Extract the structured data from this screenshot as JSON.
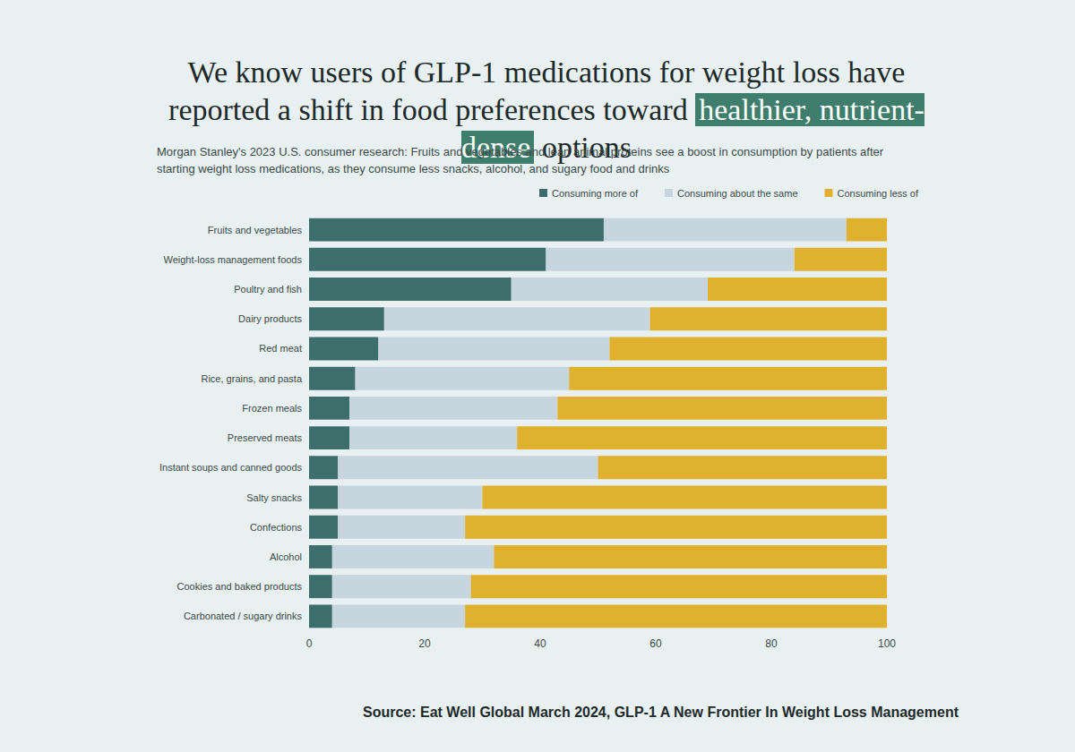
{
  "chart_data": {
    "type": "bar",
    "title": "We know users of GLP-1 medications for weight loss have reported a shift in food preferences toward healthier, nutrient-dense options",
    "title_highlight": "healthier, nutrient-dense",
    "subtitle": "Morgan Stanley's 2023 U.S. consumer research: Fruits and vegetables and lean animal proteins see a boost in consumption by patients after starting weight loss medications, as they consume less snacks, alcohol, and sugary food and drinks",
    "source": "Source: Eat Well Global March 2024, GLP-1 A New Frontier In Weight Loss Management",
    "orientation": "horizontal",
    "stacked": true,
    "legend": "top",
    "grid": false,
    "categories": [
      "Fruits and vegetables",
      "Weight-loss management foods",
      "Poultry and fish",
      "Dairy products",
      "Red meat",
      "Rice, grains, and pasta",
      "Frozen meals",
      "Preserved meats",
      "Instant soups and canned goods",
      "Salty snacks",
      "Confections",
      "Alcohol",
      "Cookies and baked products",
      "Carbonated / sugary drinks"
    ],
    "series": [
      {
        "name": "Consuming more of",
        "color": "#3d6e6c",
        "values": [
          51,
          41,
          35,
          13,
          12,
          8,
          7,
          7,
          5,
          5,
          5,
          4,
          4,
          4
        ]
      },
      {
        "name": "Consuming about the same",
        "color": "#c7d5de",
        "values": [
          42,
          43,
          34,
          46,
          40,
          37,
          36,
          29,
          45,
          25,
          22,
          28,
          24,
          23
        ]
      },
      {
        "name": "Consuming less of",
        "color": "#e0b12e",
        "values": [
          7,
          16,
          31,
          41,
          48,
          55,
          57,
          64,
          50,
          70,
          73,
          68,
          72,
          73
        ]
      }
    ],
    "xlim": [
      0,
      100
    ],
    "xticks": [
      0,
      20,
      40,
      60,
      80,
      100
    ]
  }
}
